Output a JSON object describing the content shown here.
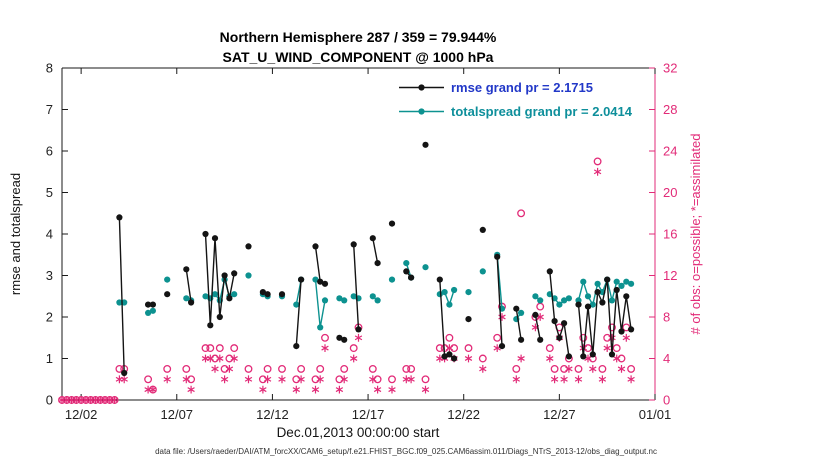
{
  "figure": {
    "caption": "data file: /Users/raeder/DAI/ATM_forcXX/CAM6_setup/f.e21.FHIST_BGC.f09_025.CAM6assim.011/Diags_NTrS_2013-12/obs_diag_output.nc",
    "colors": {
      "rmse": "#141414",
      "totalspread": "#0d9290",
      "obs": "#e22b78",
      "legend_rmse_text": "#2238c8",
      "legend_spread_text": "#0e8f9b",
      "axis": "#1a1a1a"
    }
  },
  "chart_data": {
    "type": "line",
    "title": "Northern Hemisphere 287 / 359 = 79.944%",
    "subtitle": "SAT_U_WIND_COMPONENT @ 1000 hPa",
    "xlabel": "Dec.01,2013 00:00:00 start",
    "ylabel_left": "rmse and totalspread",
    "ylabel_right": "# of obs: o=possible; *=assimilated",
    "legend_position": "top-right-inside",
    "grid": false,
    "stats": {
      "rmse_grand_pr": 2.1715,
      "totalspread_grand_pr": 2.0414,
      "ratio_numerator": 287,
      "ratio_denominator": 359,
      "ratio_percent": 79.944
    },
    "x_axis": {
      "range": [
        1,
        32
      ],
      "tick_values": [
        2,
        7,
        12,
        17,
        22,
        27,
        32
      ],
      "tick_labels": [
        "12/02",
        "12/07",
        "12/12",
        "12/17",
        "12/22",
        "12/27",
        "01/01"
      ]
    },
    "y_left": {
      "range": [
        0,
        8
      ],
      "tick_values": [
        0,
        1,
        2,
        3,
        4,
        5,
        6,
        7,
        8
      ],
      "tick_labels": [
        "0",
        "1",
        "2",
        "3",
        "4",
        "5",
        "6",
        "7",
        "8"
      ]
    },
    "y_right": {
      "range": [
        0,
        32
      ],
      "tick_values": [
        0,
        4,
        8,
        12,
        16,
        20,
        24,
        28,
        32
      ],
      "tick_labels": [
        "0",
        "4",
        "8",
        "12",
        "16",
        "20",
        "24",
        "28",
        "32"
      ]
    },
    "series": [
      {
        "id": "rmse",
        "name": "rmse grand pr = 2.1715",
        "axis": "left",
        "marker": "dot",
        "line": true,
        "color_key": "rmse",
        "x": [
          4,
          4.25,
          5.5,
          5.75,
          6.5,
          7.5,
          7.75,
          8.5,
          8.75,
          9,
          9.25,
          9.5,
          9.75,
          10,
          10.75,
          11.5,
          11.75,
          12.5,
          13.25,
          13.5,
          14.25,
          14.5,
          14.75,
          15.5,
          15.75,
          16.25,
          16.5,
          17.25,
          17.5,
          18.25,
          19,
          19.25,
          20,
          20.75,
          21,
          21.25,
          21.5,
          22.25,
          23,
          23.75,
          24,
          24.75,
          25,
          25.75,
          26,
          26.5,
          26.75,
          27,
          27.25,
          27.5,
          28,
          28.25,
          28.5,
          28.75,
          29,
          29.25,
          29.5,
          29.75,
          30,
          30.25,
          30.5,
          30.75
        ],
        "y": [
          4.4,
          0.65,
          2.3,
          2.3,
          2.55,
          3.15,
          2.35,
          4,
          1.8,
          3.9,
          2,
          3,
          2.45,
          3.05,
          3.7,
          2.6,
          2.55,
          2.55,
          1.3,
          2.9,
          3.7,
          2.85,
          2.8,
          1.5,
          1.45,
          3.75,
          1.7,
          3.9,
          3.3,
          4.25,
          3.1,
          2.95,
          6.15,
          2.9,
          1.05,
          1.1,
          1,
          1.95,
          4.1,
          3.45,
          1.3,
          2.2,
          1.45,
          2.05,
          1.45,
          3.1,
          1.9,
          1.5,
          1.85,
          1.05,
          2.3,
          1.05,
          2.25,
          1.1,
          2.6,
          2.35,
          2.9,
          1.1,
          2.65,
          1.65,
          2.5,
          1.7
        ]
      },
      {
        "id": "totalspread",
        "name": "totalspread grand pr = 2.0414",
        "axis": "left",
        "marker": "dot",
        "line": true,
        "color_key": "totalspread",
        "x": [
          4,
          4.25,
          5.5,
          5.75,
          6.5,
          7.5,
          7.75,
          8.5,
          8.75,
          9,
          9.25,
          9.5,
          9.75,
          10,
          10.75,
          11.5,
          11.75,
          12.5,
          13.25,
          13.5,
          14.25,
          14.5,
          14.75,
          15.5,
          15.75,
          16.25,
          16.5,
          17.25,
          17.5,
          18.25,
          19,
          19.25,
          20,
          20.75,
          21,
          21.25,
          21.5,
          22.25,
          23,
          23.75,
          24,
          24.75,
          25,
          25.75,
          26,
          26.5,
          26.75,
          27,
          27.25,
          27.5,
          28,
          28.25,
          28.5,
          28.75,
          29,
          29.25,
          29.5,
          29.75,
          30,
          30.25,
          30.5,
          30.75
        ],
        "y": [
          2.35,
          2.35,
          2.1,
          2.15,
          2.9,
          2.45,
          2.4,
          2.5,
          2.45,
          2.55,
          2.4,
          2.9,
          2.5,
          2.55,
          3,
          2.55,
          2.5,
          2.5,
          2.3,
          2.9,
          2.9,
          1.75,
          2.4,
          2.45,
          2.4,
          2.5,
          2.45,
          2.5,
          2.4,
          2.9,
          3.3,
          2.95,
          3.2,
          2.55,
          2.6,
          2.3,
          2.65,
          2.6,
          3.1,
          3.5,
          2.2,
          1.95,
          2.1,
          2.5,
          2.4,
          2.55,
          2.45,
          2.3,
          2.4,
          2.45,
          2.4,
          2.85,
          2.5,
          2.3,
          2.8,
          2.6,
          2.9,
          2.4,
          2.85,
          2.75,
          2.85,
          2.8
        ]
      },
      {
        "id": "possible",
        "name": "possible",
        "axis": "right",
        "marker": "open-circle",
        "line": false,
        "color_key": "obs",
        "x": [
          1,
          1.25,
          1.5,
          1.75,
          2,
          2.25,
          2.5,
          2.75,
          3,
          3.25,
          3.5,
          3.75,
          4,
          4.25,
          5.5,
          5.75,
          6.5,
          7.5,
          7.75,
          8.5,
          8.75,
          9,
          9.25,
          9.5,
          9.75,
          10,
          10.75,
          11.5,
          11.75,
          12.5,
          13.25,
          13.5,
          14.25,
          14.5,
          14.75,
          15.5,
          15.75,
          16.25,
          16.5,
          17.25,
          17.5,
          18.25,
          19,
          19.25,
          20,
          20.75,
          21,
          21.25,
          21.5,
          22.25,
          23,
          23.75,
          24,
          24.75,
          25,
          25.75,
          26,
          26.5,
          26.75,
          27,
          27.25,
          27.5,
          28,
          28.25,
          28.5,
          28.75,
          29,
          29.25,
          29.5,
          29.75,
          30,
          30.25,
          30.5,
          30.75
        ],
        "y": [
          0,
          0,
          0,
          0,
          0,
          0,
          0,
          0,
          0,
          0,
          0,
          0,
          3,
          3,
          2,
          1,
          3,
          3,
          2,
          5,
          5,
          4,
          5,
          3,
          4,
          5,
          3,
          2,
          3,
          3,
          2,
          3,
          2,
          3,
          6,
          2,
          3,
          5,
          7,
          3,
          2,
          2,
          3,
          3,
          2,
          5,
          5,
          6,
          5,
          5,
          4,
          6,
          9,
          3,
          18,
          8,
          9,
          5,
          3,
          7,
          3,
          4,
          3,
          6,
          5,
          4,
          23,
          3,
          6,
          7,
          5,
          4,
          7,
          3
        ]
      },
      {
        "id": "assimilated",
        "name": "assimilated",
        "axis": "right",
        "marker": "asterisk",
        "line": false,
        "color_key": "obs",
        "x": [
          1,
          1.25,
          1.5,
          1.75,
          2,
          2.25,
          2.5,
          2.75,
          3,
          3.25,
          3.5,
          3.75,
          4,
          4.25,
          5.5,
          5.75,
          6.5,
          7.5,
          7.75,
          8.5,
          8.75,
          9,
          9.25,
          9.5,
          9.75,
          10,
          10.75,
          11.5,
          11.75,
          12.5,
          13.25,
          13.5,
          14.25,
          14.5,
          14.75,
          15.5,
          15.75,
          16.25,
          16.5,
          17.25,
          17.5,
          18.25,
          19,
          19.25,
          20,
          20.75,
          21,
          21.25,
          21.5,
          22.25,
          23,
          23.75,
          24,
          24.75,
          25,
          25.75,
          26,
          26.5,
          26.75,
          27,
          27.25,
          27.5,
          28,
          28.25,
          28.5,
          28.75,
          29,
          29.25,
          29.5,
          29.75,
          30,
          30.25,
          30.5,
          30.75
        ],
        "y": [
          0,
          0,
          0,
          0,
          0,
          0,
          0,
          0,
          0,
          0,
          0,
          0,
          2,
          2,
          1,
          1,
          2,
          2,
          1,
          4,
          4,
          3,
          4,
          2,
          3,
          4,
          2,
          1,
          2,
          2,
          1,
          2,
          1,
          2,
          5,
          1,
          2,
          4,
          6,
          2,
          1,
          1,
          2,
          2,
          1,
          4,
          4,
          5,
          4,
          4,
          3,
          5,
          8,
          2,
          4,
          7,
          8,
          4,
          2,
          6,
          2,
          3,
          2,
          5,
          4,
          3,
          22,
          2,
          5,
          6,
          4,
          3,
          6,
          2
        ]
      }
    ]
  }
}
